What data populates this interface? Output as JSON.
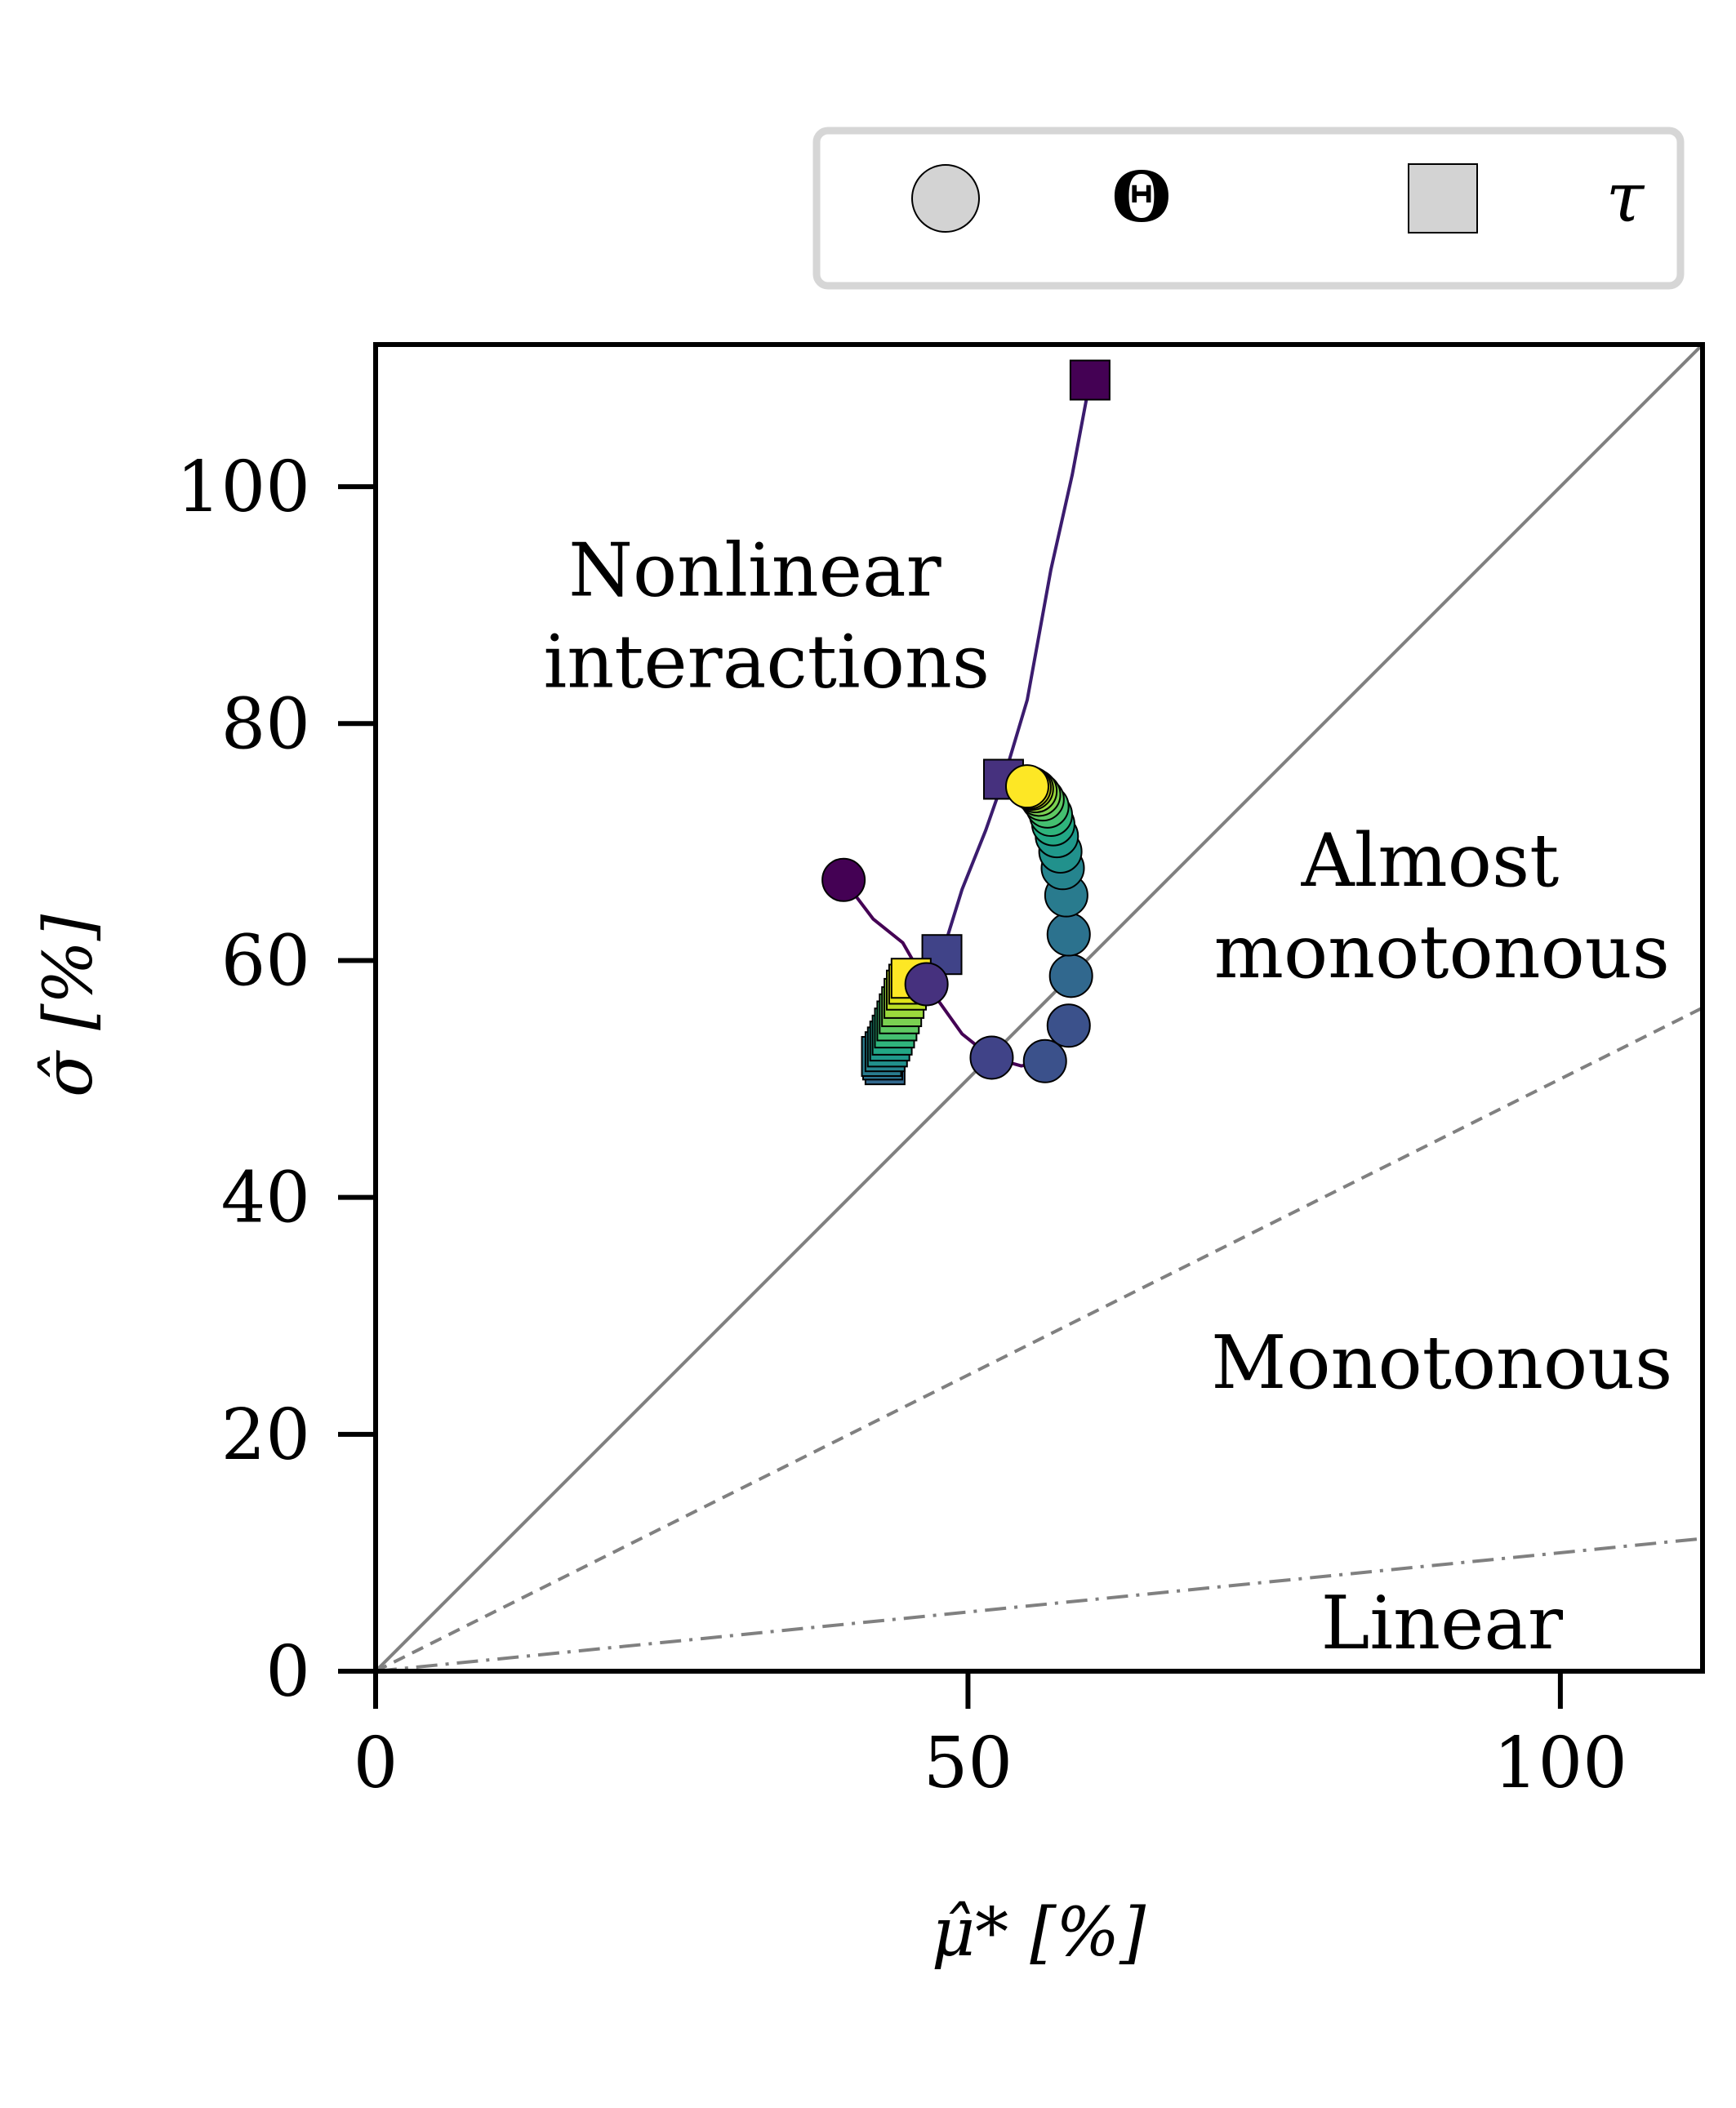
{
  "chart_data": {
    "type": "scatter",
    "xlabel": "μ̂* [%]",
    "ylabel": "σ̂ [%]",
    "xlim": [
      0,
      112
    ],
    "ylim": [
      0,
      112
    ],
    "x_ticks": [
      0,
      50,
      100
    ],
    "y_ticks": [
      0,
      20,
      40,
      60,
      80,
      100
    ],
    "x_tick_labels": [
      "0",
      "50",
      "100"
    ],
    "y_tick_labels": [
      "0",
      "20",
      "40",
      "60",
      "80",
      "100"
    ],
    "grid": false,
    "legend": {
      "placement": "top-right, outside above axes",
      "entries": [
        {
          "marker": "circle",
          "label": "Θ"
        },
        {
          "marker": "square",
          "label": "τ"
        }
      ]
    },
    "reference_lines": [
      {
        "name": "nonlinear-boundary",
        "style": "solid",
        "slope": 1.0
      },
      {
        "name": "monotonous-boundary",
        "style": "dashed",
        "slope": 0.5
      },
      {
        "name": "linear-boundary",
        "style": "dashdot",
        "slope": 0.1
      }
    ],
    "region_labels": [
      {
        "lines": [
          "Nonlinear",
          "interactions"
        ],
        "x": 33,
        "y": 89
      },
      {
        "lines": [
          "Almost",
          "monotonous"
        ],
        "x": 90,
        "y": 64.5
      },
      {
        "lines": [
          "Monotonous"
        ],
        "x": 90,
        "y": 26
      },
      {
        "lines": [
          "Linear"
        ],
        "x": 90,
        "y": 4
      }
    ],
    "series": [
      {
        "name": "Θ",
        "marker": "circle",
        "points": [
          {
            "x": 39.5,
            "y": 66.8,
            "color": "#440154"
          },
          {
            "x": 46.5,
            "y": 58.0,
            "color": "#46317e"
          },
          {
            "x": 52.0,
            "y": 51.8,
            "color": "#404388"
          },
          {
            "x": 56.5,
            "y": 51.5,
            "color": "#3b518b"
          },
          {
            "x": 58.5,
            "y": 54.5,
            "color": "#3b518b"
          },
          {
            "x": 58.7,
            "y": 58.7,
            "color": "#31688e"
          },
          {
            "x": 58.5,
            "y": 62.2,
            "color": "#2c728e"
          },
          {
            "x": 58.3,
            "y": 65.5,
            "color": "#297b8e"
          },
          {
            "x": 58.0,
            "y": 67.8,
            "color": "#25848e"
          },
          {
            "x": 57.8,
            "y": 69.2,
            "color": "#21918c"
          },
          {
            "x": 57.5,
            "y": 70.5,
            "color": "#1f988b"
          },
          {
            "x": 57.2,
            "y": 71.5,
            "color": "#22a785"
          },
          {
            "x": 57.0,
            "y": 72.3,
            "color": "#2fb47c"
          },
          {
            "x": 56.7,
            "y": 73.0,
            "color": "#44bf70"
          },
          {
            "x": 56.3,
            "y": 73.6,
            "color": "#5ec962"
          },
          {
            "x": 56.0,
            "y": 74.0,
            "color": "#7ad151"
          },
          {
            "x": 55.7,
            "y": 74.3,
            "color": "#9bd93c"
          },
          {
            "x": 55.4,
            "y": 74.5,
            "color": "#bddf26"
          },
          {
            "x": 55.2,
            "y": 74.6,
            "color": "#dfe318"
          },
          {
            "x": 55.0,
            "y": 74.7,
            "color": "#fde725"
          }
        ]
      },
      {
        "name": "τ",
        "marker": "square",
        "points": [
          {
            "x": 60.3,
            "y": 109.0,
            "color": "#440154"
          },
          {
            "x": 53.0,
            "y": 75.3,
            "color": "#46317e"
          },
          {
            "x": 47.8,
            "y": 60.5,
            "color": "#404388"
          },
          {
            "x": 43.0,
            "y": 51.2,
            "color": "#31688e"
          },
          {
            "x": 42.8,
            "y": 51.6,
            "color": "#2c728e"
          },
          {
            "x": 42.7,
            "y": 51.9,
            "color": "#297b8e"
          },
          {
            "x": 43.0,
            "y": 52.3,
            "color": "#25848e"
          },
          {
            "x": 43.2,
            "y": 52.7,
            "color": "#21918c"
          },
          {
            "x": 43.4,
            "y": 53.2,
            "color": "#1f988b"
          },
          {
            "x": 43.6,
            "y": 53.7,
            "color": "#22a785"
          },
          {
            "x": 43.8,
            "y": 54.3,
            "color": "#2fb47c"
          },
          {
            "x": 44.0,
            "y": 54.9,
            "color": "#44bf70"
          },
          {
            "x": 44.2,
            "y": 55.5,
            "color": "#5ec962"
          },
          {
            "x": 44.4,
            "y": 56.1,
            "color": "#7ad151"
          },
          {
            "x": 44.6,
            "y": 56.8,
            "color": "#9bd93c"
          },
          {
            "x": 44.8,
            "y": 57.5,
            "color": "#bddf26"
          },
          {
            "x": 45.0,
            "y": 58.0,
            "color": "#dfe318"
          },
          {
            "x": 45.2,
            "y": 58.5,
            "color": "#fde725"
          }
        ]
      }
    ],
    "trend_curves": [
      {
        "name": "Θ-path",
        "color": "#440154",
        "points": [
          [
            39.5,
            66.8
          ],
          [
            42.0,
            63.5
          ],
          [
            44.5,
            61.5
          ],
          [
            46.5,
            58.0
          ],
          [
            49.5,
            53.8
          ],
          [
            52.0,
            51.8
          ],
          [
            54.5,
            51.1
          ],
          [
            56.5,
            51.5
          ]
        ]
      },
      {
        "name": "τ-path",
        "color": "#3b1c6e",
        "points": [
          [
            45.2,
            58.5
          ],
          [
            46.5,
            59.2
          ],
          [
            47.8,
            60.5
          ],
          [
            49.5,
            66.0
          ],
          [
            51.5,
            71.0
          ],
          [
            53.0,
            75.3
          ],
          [
            55.0,
            82.0
          ],
          [
            57.0,
            93.0
          ],
          [
            58.8,
            101.0
          ],
          [
            60.3,
            109.0
          ]
        ]
      }
    ],
    "colors": {
      "axis": "#000000",
      "reference_line": "#808080",
      "legend_marker_fill": "#d3d3d3",
      "legend_border": "#d6d6d6",
      "marker_edge": "#000000"
    }
  }
}
